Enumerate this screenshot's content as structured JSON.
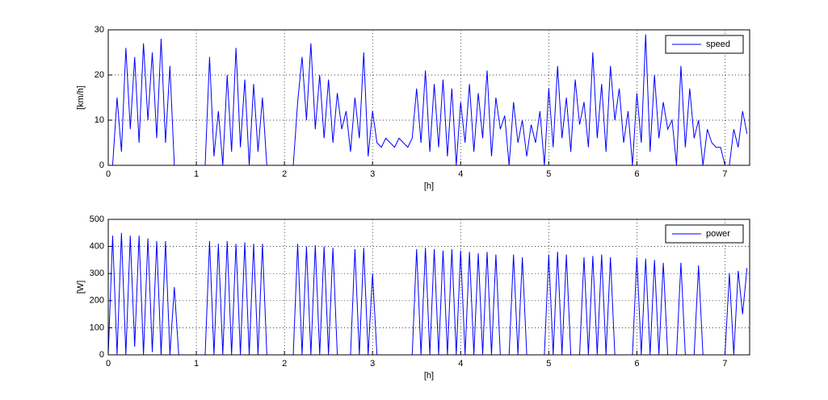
{
  "chart_data": [
    {
      "type": "line",
      "xlabel": "[h]",
      "ylabel": "[km/h]",
      "xlim": [
        0,
        7.28
      ],
      "ylim": [
        0,
        30
      ],
      "xticks": [
        0,
        1,
        2,
        3,
        4,
        5,
        6,
        7
      ],
      "yticks": [
        0,
        10,
        20,
        30
      ],
      "grid": true,
      "legend": "upper right",
      "x": [
        0,
        0.05,
        0.1,
        0.15,
        0.2,
        0.25,
        0.3,
        0.35,
        0.4,
        0.45,
        0.5,
        0.55,
        0.6,
        0.65,
        0.7,
        0.75,
        0.8,
        0.85,
        0.9,
        0.95,
        1,
        1.05,
        1.1,
        1.15,
        1.2,
        1.25,
        1.3,
        1.35,
        1.4,
        1.45,
        1.5,
        1.55,
        1.6,
        1.65,
        1.7,
        1.75,
        1.8,
        1.85,
        1.9,
        1.95,
        2,
        2.05,
        2.1,
        2.15,
        2.2,
        2.25,
        2.3,
        2.35,
        2.4,
        2.45,
        2.5,
        2.55,
        2.6,
        2.65,
        2.7,
        2.75,
        2.8,
        2.85,
        2.9,
        2.95,
        3,
        3.05,
        3.1,
        3.15,
        3.2,
        3.25,
        3.3,
        3.35,
        3.4,
        3.45,
        3.5,
        3.55,
        3.6,
        3.65,
        3.7,
        3.75,
        3.8,
        3.85,
        3.9,
        3.95,
        4,
        4.05,
        4.1,
        4.15,
        4.2,
        4.25,
        4.3,
        4.35,
        4.4,
        4.45,
        4.5,
        4.55,
        4.6,
        4.65,
        4.7,
        4.75,
        4.8,
        4.85,
        4.9,
        4.95,
        5,
        5.05,
        5.1,
        5.15,
        5.2,
        5.25,
        5.3,
        5.35,
        5.4,
        5.45,
        5.5,
        5.55,
        5.6,
        5.65,
        5.7,
        5.75,
        5.8,
        5.85,
        5.9,
        5.95,
        6,
        6.05,
        6.1,
        6.15,
        6.2,
        6.25,
        6.3,
        6.35,
        6.4,
        6.45,
        6.5,
        6.55,
        6.6,
        6.65,
        6.7,
        6.75,
        6.8,
        6.85,
        6.9,
        6.95,
        7,
        7.05,
        7.1,
        7.15,
        7.2,
        7.25
      ],
      "series": [
        {
          "name": "speed",
          "color": "#0000ff",
          "values": [
            0,
            0,
            15,
            3,
            26,
            8,
            24,
            5,
            27,
            10,
            25,
            6,
            28,
            5,
            22,
            0,
            0,
            0,
            0,
            0,
            0,
            0,
            0,
            24,
            2,
            12,
            0,
            20,
            3,
            26,
            4,
            19,
            0,
            18,
            3,
            15,
            0,
            0,
            0,
            0,
            0,
            0,
            0,
            14,
            24,
            10,
            27,
            8,
            20,
            6,
            19,
            5,
            16,
            8,
            12,
            3,
            15,
            6,
            25,
            2,
            12,
            5,
            4,
            6,
            5,
            4,
            6,
            5,
            4,
            6,
            17,
            5,
            21,
            3,
            18,
            4,
            19,
            2,
            17,
            0,
            14,
            5,
            18,
            3,
            16,
            6,
            21,
            2,
            15,
            8,
            11,
            0,
            14,
            5,
            10,
            2,
            9,
            5,
            12,
            0,
            17,
            4,
            22,
            6,
            15,
            3,
            19,
            9,
            14,
            4,
            25,
            6,
            18,
            3,
            22,
            10,
            17,
            5,
            12,
            0,
            16,
            5,
            29,
            3,
            20,
            6,
            14,
            8,
            10,
            0,
            22,
            4,
            17,
            6,
            10,
            0,
            8,
            5,
            4,
            4,
            0,
            0,
            8,
            4,
            12,
            7
          ]
        }
      ]
    },
    {
      "type": "line",
      "xlabel": "[h]",
      "ylabel": "[W]",
      "xlim": [
        0,
        7.28
      ],
      "ylim": [
        0,
        500
      ],
      "xticks": [
        0,
        1,
        2,
        3,
        4,
        5,
        6,
        7
      ],
      "yticks": [
        0,
        100,
        200,
        300,
        400,
        500
      ],
      "grid": true,
      "legend": "upper right",
      "x": [
        0,
        0.05,
        0.1,
        0.15,
        0.2,
        0.25,
        0.3,
        0.35,
        0.4,
        0.45,
        0.5,
        0.55,
        0.6,
        0.65,
        0.7,
        0.75,
        0.8,
        0.85,
        0.9,
        0.95,
        1,
        1.05,
        1.1,
        1.15,
        1.2,
        1.25,
        1.3,
        1.35,
        1.4,
        1.45,
        1.5,
        1.55,
        1.6,
        1.65,
        1.7,
        1.75,
        1.8,
        1.85,
        1.9,
        1.95,
        2,
        2.05,
        2.1,
        2.15,
        2.2,
        2.25,
        2.3,
        2.35,
        2.4,
        2.45,
        2.5,
        2.55,
        2.6,
        2.65,
        2.7,
        2.75,
        2.8,
        2.85,
        2.9,
        2.95,
        3,
        3.05,
        3.1,
        3.15,
        3.2,
        3.25,
        3.3,
        3.35,
        3.4,
        3.45,
        3.5,
        3.55,
        3.6,
        3.65,
        3.7,
        3.75,
        3.8,
        3.85,
        3.9,
        3.95,
        4,
        4.05,
        4.1,
        4.15,
        4.2,
        4.25,
        4.3,
        4.35,
        4.4,
        4.45,
        4.5,
        4.55,
        4.6,
        4.65,
        4.7,
        4.75,
        4.8,
        4.85,
        4.9,
        4.95,
        5,
        5.05,
        5.1,
        5.15,
        5.2,
        5.25,
        5.3,
        5.35,
        5.4,
        5.45,
        5.5,
        5.55,
        5.6,
        5.65,
        5.7,
        5.75,
        5.8,
        5.85,
        5.9,
        5.95,
        6,
        6.05,
        6.1,
        6.15,
        6.2,
        6.25,
        6.3,
        6.35,
        6.4,
        6.45,
        6.5,
        6.55,
        6.6,
        6.65,
        6.7,
        6.75,
        6.8,
        6.85,
        6.9,
        6.95,
        7,
        7.05,
        7.1,
        7.15,
        7.2,
        7.25
      ],
      "series": [
        {
          "name": "power",
          "color": "#0000ff",
          "values": [
            0,
            440,
            0,
            450,
            0,
            440,
            30,
            440,
            0,
            430,
            10,
            420,
            0,
            420,
            0,
            250,
            0,
            0,
            0,
            0,
            0,
            0,
            0,
            420,
            0,
            410,
            0,
            420,
            0,
            410,
            0,
            415,
            0,
            410,
            0,
            410,
            0,
            0,
            0,
            0,
            0,
            0,
            0,
            410,
            0,
            400,
            0,
            405,
            0,
            400,
            0,
            395,
            0,
            0,
            0,
            0,
            390,
            0,
            395,
            0,
            300,
            0,
            0,
            0,
            0,
            0,
            0,
            0,
            0,
            0,
            390,
            0,
            395,
            0,
            390,
            0,
            385,
            0,
            390,
            0,
            385,
            0,
            380,
            0,
            375,
            0,
            380,
            0,
            370,
            0,
            0,
            0,
            370,
            0,
            360,
            0,
            0,
            0,
            0,
            0,
            370,
            0,
            380,
            0,
            370,
            0,
            0,
            0,
            360,
            0,
            365,
            0,
            370,
            0,
            360,
            0,
            0,
            0,
            0,
            0,
            360,
            0,
            355,
            0,
            350,
            0,
            340,
            0,
            0,
            0,
            340,
            0,
            0,
            0,
            330,
            0,
            0,
            0,
            0,
            0,
            0,
            300,
            0,
            310,
            150,
            320
          ]
        }
      ]
    }
  ]
}
